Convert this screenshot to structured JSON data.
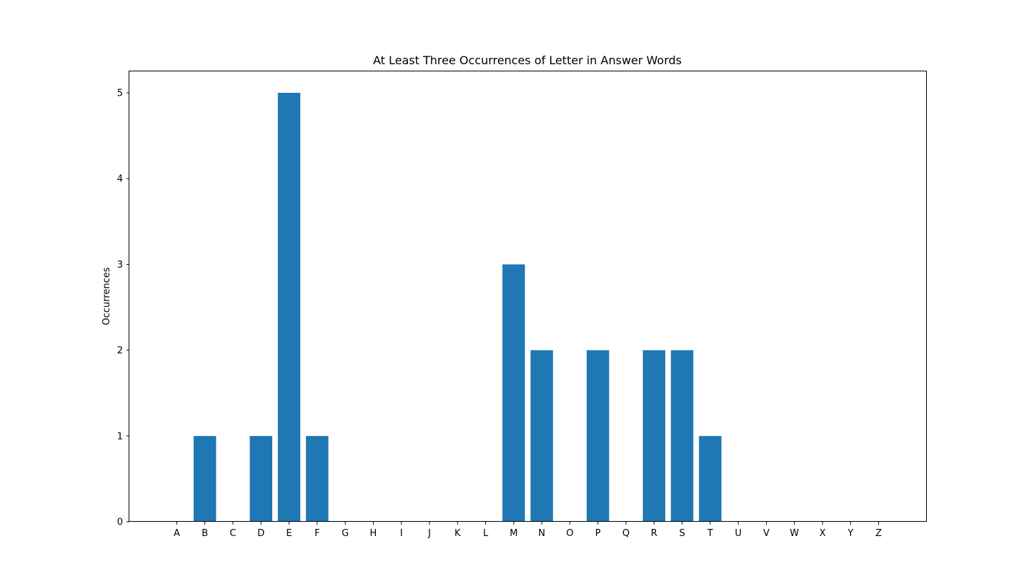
{
  "chart_data": {
    "type": "bar",
    "title": "At Least Three Occurrences of Letter in Answer Words",
    "xlabel": "",
    "ylabel": "Occurrences",
    "categories": [
      "A",
      "B",
      "C",
      "D",
      "E",
      "F",
      "G",
      "H",
      "I",
      "J",
      "K",
      "L",
      "M",
      "N",
      "O",
      "P",
      "Q",
      "R",
      "S",
      "T",
      "U",
      "V",
      "W",
      "X",
      "Y",
      "Z"
    ],
    "values": [
      0,
      1,
      0,
      1,
      5,
      1,
      0,
      0,
      0,
      0,
      0,
      0,
      3,
      2,
      0,
      2,
      0,
      2,
      2,
      1,
      0,
      0,
      0,
      0,
      0,
      0
    ],
    "yticks": [
      "0",
      "1",
      "2",
      "3",
      "4",
      "5"
    ],
    "ylim": [
      0,
      5.25
    ],
    "bar_color": "#1f77b4",
    "grid": false,
    "legend": "none"
  }
}
